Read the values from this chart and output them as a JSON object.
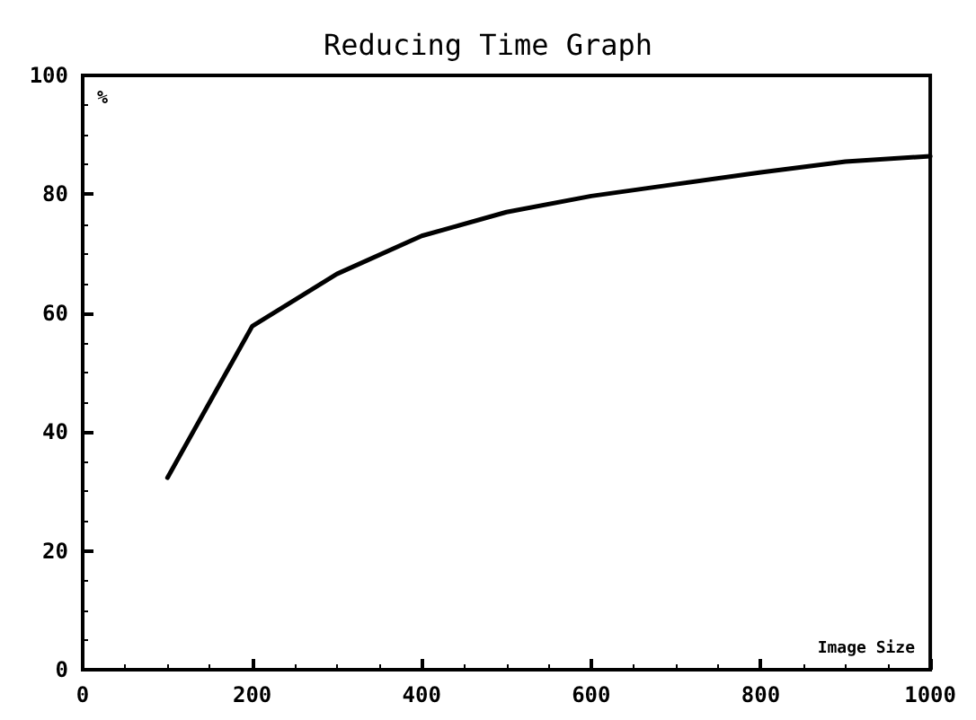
{
  "chart_data": {
    "type": "line",
    "title": "Reducing Time Graph",
    "xlabel": "Image Size",
    "ylabel": "%",
    "x": [
      100,
      200,
      300,
      400,
      500,
      600,
      700,
      800,
      900,
      1000
    ],
    "series": [
      {
        "color": "#000000",
        "values": [
          32.3,
          57.8,
          66.6,
          73.0,
          77.0,
          79.7,
          81.7,
          83.7,
          85.5,
          86.4
        ]
      }
    ],
    "xlim": [
      0,
      1000
    ],
    "xticks": [
      0,
      200,
      400,
      600,
      800,
      1000
    ],
    "ylim": [
      0,
      100
    ],
    "yticks": [
      0,
      20,
      40,
      60,
      80,
      100
    ],
    "grid": false,
    "marker": "none",
    "line_style": "solid"
  }
}
